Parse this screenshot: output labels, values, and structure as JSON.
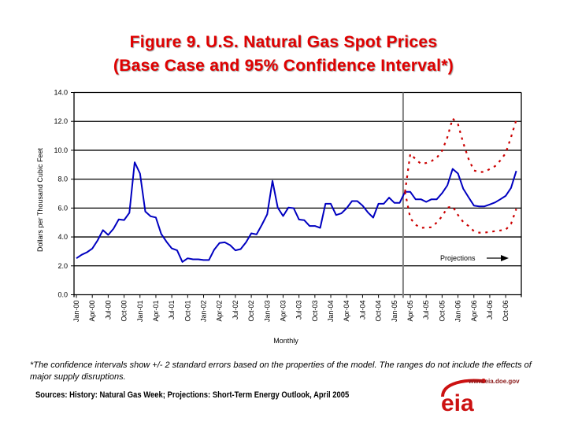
{
  "title": {
    "line1": "Figure 9. U.S. Natural Gas Spot Prices",
    "line2": "(Base Case and 95% Confidence Interval*)"
  },
  "chart_data": {
    "type": "line",
    "title": "Figure 9. U.S. Natural Gas Spot Prices (Base Case and 95% Confidence Interval*)",
    "xlabel": "Monthly",
    "ylabel": "Dollars per Thousand Cubic Feet",
    "ylim": [
      0,
      14
    ],
    "yticks": [
      "0.0",
      "2.0",
      "4.0",
      "6.0",
      "8.0",
      "10.0",
      "12.0",
      "14.0"
    ],
    "grid": "horizontal",
    "x_start": "Jan-00",
    "x_end": "Dec-06",
    "x_tick_labels": [
      "Jan-00",
      "Apr-00",
      "Jul-00",
      "Oct-00",
      "Jan-01",
      "Apr-01",
      "Jul-01",
      "Oct-01",
      "Jan-02",
      "Apr-02",
      "Jul-02",
      "Oct-02",
      "Jan-03",
      "Apr-03",
      "Jul-03",
      "Oct-03",
      "Jan-04",
      "Apr-04",
      "Jul-04",
      "Oct-04",
      "Jan-05",
      "Apr-05",
      "Jul-05",
      "Oct-05",
      "Jan-06",
      "Apr-06",
      "Jul-06",
      "Oct-06"
    ],
    "projection_start": "Mar-05",
    "projection_label": "Projections",
    "series": [
      {
        "name": "Base Case",
        "color": "#0000c0",
        "style": "solid",
        "start": "Jan-00",
        "values": [
          2.52,
          2.77,
          2.94,
          3.2,
          3.76,
          4.47,
          4.14,
          4.57,
          5.22,
          5.17,
          5.67,
          9.17,
          8.39,
          5.76,
          5.43,
          5.35,
          4.21,
          3.67,
          3.21,
          3.07,
          2.27,
          2.52,
          2.45,
          2.45,
          2.4,
          2.4,
          3.12,
          3.58,
          3.63,
          3.43,
          3.07,
          3.16,
          3.63,
          4.25,
          4.18,
          4.85,
          5.57,
          7.88,
          6.03,
          5.45,
          6.03,
          5.99,
          5.21,
          5.16,
          4.76,
          4.76,
          4.63,
          6.3,
          6.3,
          5.52,
          5.63,
          5.99,
          6.48,
          6.48,
          6.17,
          5.7,
          5.34,
          6.3,
          6.3,
          6.72,
          6.36,
          6.36,
          7.12,
          7.12,
          6.61,
          6.61,
          6.43,
          6.61,
          6.61,
          7.03,
          7.57,
          8.71,
          8.39,
          7.33,
          6.75,
          6.17,
          6.12,
          6.12,
          6.25,
          6.39,
          6.61,
          6.84,
          7.39,
          8.57
        ]
      },
      {
        "name": "Upper 95% Confidence",
        "color": "#cc0000",
        "style": "dotted",
        "start": "Mar-05",
        "values": [
          7.12,
          9.75,
          9.39,
          9.06,
          9.12,
          9.25,
          9.48,
          9.97,
          10.9,
          12.2,
          11.8,
          10.5,
          9.4,
          8.6,
          8.5,
          8.5,
          8.7,
          8.9,
          9.3,
          9.8,
          10.9,
          12.1
        ]
      },
      {
        "name": "Lower 95% Confidence",
        "color": "#cc0000",
        "style": "dotted",
        "start": "Mar-05",
        "values": [
          7.12,
          5.3,
          4.85,
          4.63,
          4.65,
          4.67,
          5.0,
          5.43,
          6.03,
          6.12,
          5.52,
          5.03,
          4.76,
          4.4,
          4.3,
          4.3,
          4.35,
          4.4,
          4.45,
          4.5,
          4.9,
          5.94
        ]
      }
    ]
  },
  "footnote": "*The confidence intervals show +/- 2 standard errors based on the properties of the model.  The ranges do not include the effects of major supply disruptions.",
  "sources": "Sources: History: Natural Gas Week;  Projections: Short-Term Energy Outlook, April 2005",
  "logo": {
    "text": "eia",
    "url": "www.eia.doe.gov",
    "color": "#cc1111"
  }
}
